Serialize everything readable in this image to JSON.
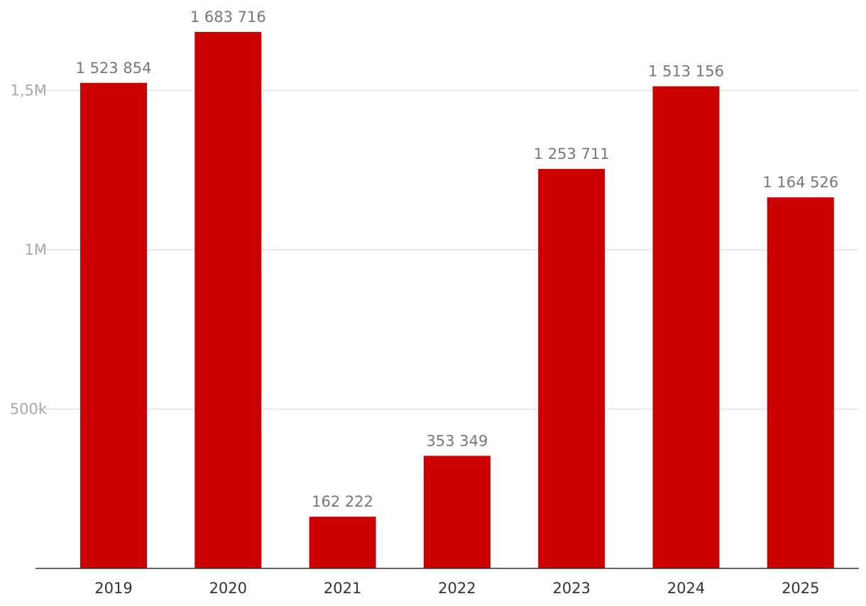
{
  "chart_data": {
    "type": "bar",
    "categories": [
      "2019",
      "2020",
      "2021",
      "2022",
      "2023",
      "2024",
      "2025"
    ],
    "values": [
      1523854,
      1683716,
      162222,
      353349,
      1253711,
      1513156,
      1164526
    ],
    "data_labels": [
      "1 523 854",
      "1 683 716",
      "162 222",
      "353 349",
      "1 253 711",
      "1 513 156",
      "1 164 526"
    ],
    "y_ticks": [
      {
        "value": 500000,
        "label": "500k"
      },
      {
        "value": 1000000,
        "label": "1M"
      },
      {
        "value": 1500000,
        "label": "1,5M"
      }
    ],
    "ylim": [
      0,
      1800000
    ],
    "grid": true,
    "legend": "none",
    "bar_color": "#cc0000"
  }
}
